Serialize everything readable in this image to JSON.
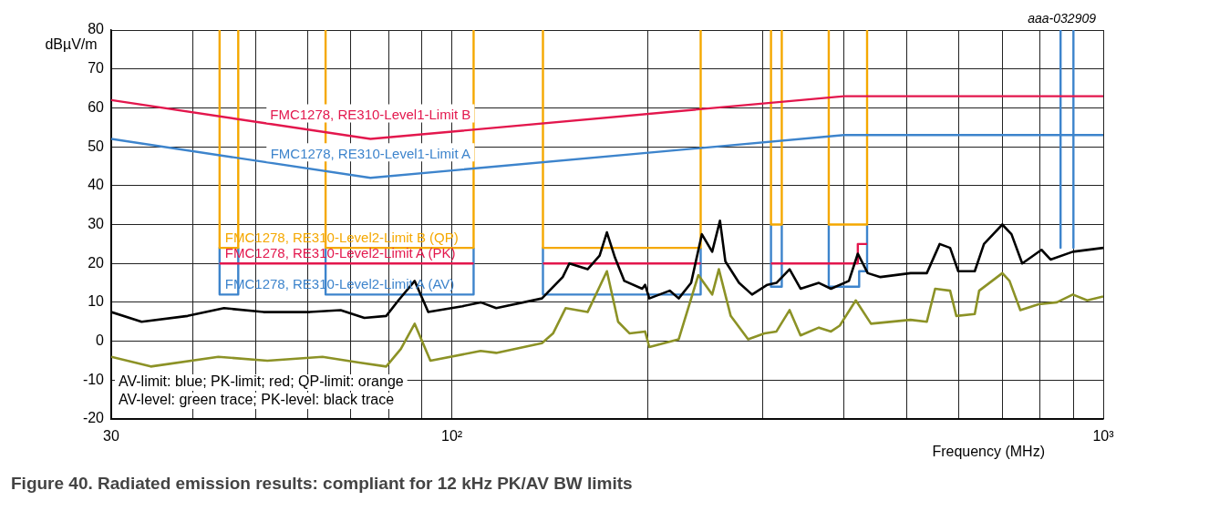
{
  "chart_data": {
    "type": "line",
    "title": "Figure 40.  Radiated emission results: compliant for 12 kHz PK/AV BW limits",
    "xlabel": "Frequency (MHz)",
    "ylabel": "dBµV/m",
    "annotations": [
      "aaa-032909",
      "AV-limit: blue; PK-limit; red; QP-limit: orange",
      "AV-level: green trace; PK-level: black trace"
    ],
    "log": "x",
    "grid": true,
    "legend": false,
    "xlim": [
      30,
      1000
    ],
    "xticks": [
      30,
      {
        "value": 40,
        "label": null
      },
      {
        "value": 50,
        "label": null
      },
      {
        "value": 60,
        "label": null
      },
      {
        "value": 70,
        "label": null
      },
      {
        "value": 80,
        "label": null
      },
      {
        "value": 90,
        "label": null
      },
      {
        "value": 100,
        "label": "10²"
      },
      {
        "value": 200,
        "label": null
      },
      {
        "value": 300,
        "label": null
      },
      {
        "value": 400,
        "label": null
      },
      {
        "value": 500,
        "label": null
      },
      {
        "value": 600,
        "label": null
      },
      {
        "value": 700,
        "label": null
      },
      {
        "value": 800,
        "label": null
      },
      {
        "value": 900,
        "label": null
      },
      {
        "value": 1000,
        "label": "10³"
      }
    ],
    "ylim": [
      -20,
      80
    ],
    "yticks": [
      -20,
      -10,
      0,
      10,
      20,
      30,
      40,
      50,
      60,
      70,
      80
    ],
    "series": [
      {
        "type": "line",
        "color": "#000000",
        "x": [
          30,
          33.4,
          39.3,
          44.7,
          51.4,
          60.5,
          67.5,
          73.4,
          79.3,
          82.8,
          87.7,
          92,
          103.8,
          110.7,
          117,
          137.5,
          148,
          151.5,
          161.6,
          168.6,
          173,
          178,
          184,
          196,
          198,
          201,
          216,
          223,
          233,
          242,
          251,
          258,
          263,
          276,
          289,
          305,
          315,
          330,
          343,
          366,
          382,
          407,
          420,
          435,
          455,
          506,
          536,
          561,
          582,
          599,
          635,
          656,
          700,
          723,
          751,
          804,
          830,
          898,
          1000
        ],
        "values": [
          7.5,
          5,
          6.5,
          8.5,
          7.5,
          7.5,
          8,
          6,
          6.5,
          10.5,
          15.5,
          7.5,
          9,
          10,
          8.5,
          11,
          16.5,
          20,
          18.5,
          22,
          28,
          21.5,
          15.5,
          13.5,
          14.5,
          11,
          13,
          11,
          15,
          27.5,
          23,
          31,
          20.5,
          15,
          12,
          14.5,
          15,
          18.5,
          13.5,
          15,
          13.5,
          15.5,
          22.5,
          17.5,
          16.5,
          17.5,
          17.5,
          25,
          24,
          18,
          18,
          25,
          30,
          27.5,
          20,
          23.5,
          21,
          23,
          24
        ]
      },
      {
        "type": "line",
        "color": "#8c9226",
        "x": [
          30,
          34.5,
          43.8,
          52.1,
          63.3,
          72,
          79.3,
          83.5,
          87.7,
          92.7,
          110.7,
          117,
          137.5,
          143,
          149.5,
          161.6,
          173,
          180,
          187.5,
          198,
          201,
          223,
          239,
          251,
          257,
          268,
          285,
          302,
          315,
          330,
          343,
          366,
          382,
          394,
          417,
          440,
          506,
          536,
          552,
          582,
          595,
          635,
          645,
          700,
          718,
          746,
          796,
          849,
          898,
          945,
          1000
        ],
        "values": [
          -4,
          -6.5,
          -4,
          -5,
          -4,
          -5.5,
          -6.5,
          -2,
          4.5,
          -5,
          -2.5,
          -3,
          -0.5,
          2,
          8.5,
          7.5,
          18,
          5,
          2,
          2.5,
          -1.5,
          0.5,
          17,
          12,
          18.5,
          6.5,
          0.5,
          2,
          2.5,
          8,
          1.5,
          3.5,
          2.5,
          4,
          10.5,
          4.5,
          5.5,
          5,
          13.5,
          13,
          6.5,
          7,
          13,
          17.5,
          15.5,
          8,
          9.5,
          10,
          12,
          10.5,
          11.5
        ]
      },
      {
        "type": "line",
        "name": "FMC1278, RE310-Level1-Limit B",
        "color": "#e3174d",
        "x": [
          30,
          75,
          400,
          1000
        ],
        "values": [
          62,
          52,
          63,
          63
        ]
      },
      {
        "type": "line",
        "name": "FMC1278, RE310-Level1-Limit A",
        "color": "#3d84cc",
        "x": [
          30,
          75,
          400,
          1000
        ],
        "values": [
          52,
          42,
          53,
          53
        ]
      },
      {
        "name": "FMC1278, RE310-Level2-Limit B (QP)",
        "color": "#f5a800",
        "x": [
          44,
          44,
          47,
          47
        ],
        "values": [
          80,
          24,
          24,
          80
        ]
      },
      {
        "color": "#f5a800",
        "x": [
          64,
          64,
          108,
          108
        ],
        "values": [
          80,
          24,
          24,
          80
        ]
      },
      {
        "color": "#f5a800",
        "x": [
          138,
          138,
          241,
          241
        ],
        "values": [
          80,
          24,
          24,
          80
        ]
      },
      {
        "color": "#f5a800",
        "x": [
          309,
          309,
          321,
          321
        ],
        "values": [
          80,
          30,
          30,
          80
        ]
      },
      {
        "color": "#f5a800",
        "x": [
          379,
          379,
          434,
          434
        ],
        "values": [
          80,
          30,
          30,
          80
        ]
      },
      {
        "name": "FMC1278, RE310-Level2-Limit A (PK)",
        "color": "#e3174d",
        "x": [
          44,
          108
        ],
        "values": [
          20,
          20
        ]
      },
      {
        "color": "#e3174d",
        "x": [
          138,
          241
        ],
        "values": [
          20,
          20
        ]
      },
      {
        "color": "#e3174d",
        "x": [
          309,
          420,
          420,
          434
        ],
        "values": [
          20,
          20,
          25,
          25
        ]
      },
      {
        "name": "FMC1278, RE310-Level2-Limit A (AV)",
        "color": "#3d84cc",
        "x": [
          44,
          44,
          47,
          47
        ],
        "values": [
          24,
          12,
          12,
          24
        ]
      },
      {
        "color": "#3d84cc",
        "x": [
          64,
          64,
          108,
          108
        ],
        "values": [
          24,
          12,
          12,
          24
        ]
      },
      {
        "color": "#3d84cc",
        "x": [
          138,
          138,
          241,
          241
        ],
        "values": [
          24,
          12,
          12,
          24
        ]
      },
      {
        "color": "#3d84cc",
        "x": [
          309,
          309,
          321,
          321
        ],
        "values": [
          30,
          14,
          14,
          30
        ]
      },
      {
        "color": "#3d84cc",
        "x": [
          379,
          379,
          422,
          422,
          434,
          434
        ],
        "values": [
          30,
          14,
          14,
          18,
          18,
          30
        ]
      },
      {
        "color": "#3d84cc",
        "x": [
          860,
          860
        ],
        "values": [
          80,
          24
        ]
      },
      {
        "color": "#3d84cc",
        "x": [
          900,
          900
        ],
        "values": [
          80,
          24
        ]
      }
    ]
  }
}
